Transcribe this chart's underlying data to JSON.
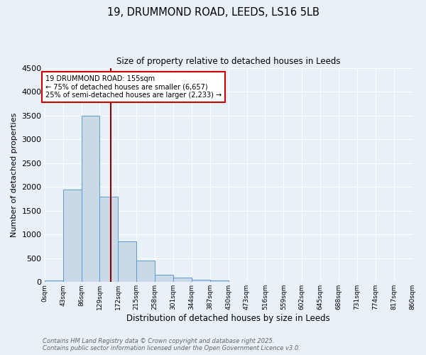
{
  "title_line1": "19, DRUMMOND ROAD, LEEDS, LS16 5LB",
  "title_line2": "Size of property relative to detached houses in Leeds",
  "xlabel": "Distribution of detached houses by size in Leeds",
  "ylabel": "Number of detached properties",
  "bin_labels": [
    "0sqm",
    "43sqm",
    "86sqm",
    "129sqm",
    "172sqm",
    "215sqm",
    "258sqm",
    "301sqm",
    "344sqm",
    "387sqm",
    "430sqm",
    "473sqm",
    "516sqm",
    "559sqm",
    "602sqm",
    "645sqm",
    "688sqm",
    "731sqm",
    "774sqm",
    "817sqm",
    "860sqm"
  ],
  "bin_edges": [
    0,
    43,
    86,
    129,
    172,
    215,
    258,
    301,
    344,
    387,
    430,
    473,
    516,
    559,
    602,
    645,
    688,
    731,
    774,
    817,
    860
  ],
  "bar_heights": [
    30,
    1950,
    3500,
    1800,
    850,
    450,
    160,
    90,
    50,
    30,
    10,
    5,
    0,
    0,
    0,
    0,
    0,
    0,
    0,
    0
  ],
  "bar_color": "#c9d9e8",
  "bar_edgecolor": "#5b9bd5",
  "property_line_x": 155,
  "property_line_color": "#8b0000",
  "annotation_text": "19 DRUMMOND ROAD: 155sqm\n← 75% of detached houses are smaller (6,657)\n25% of semi-detached houses are larger (2,233) →",
  "annotation_box_edgecolor": "#cc0000",
  "annotation_box_facecolor": "#ffffff",
  "ylim": [
    0,
    4500
  ],
  "yticks": [
    0,
    500,
    1000,
    1500,
    2000,
    2500,
    3000,
    3500,
    4000,
    4500
  ],
  "background_color": "#e8f0f8",
  "grid_color": "#ffffff",
  "footer_line1": "Contains HM Land Registry data © Crown copyright and database right 2025.",
  "footer_line2": "Contains public sector information licensed under the Open Government Licence v3.0."
}
